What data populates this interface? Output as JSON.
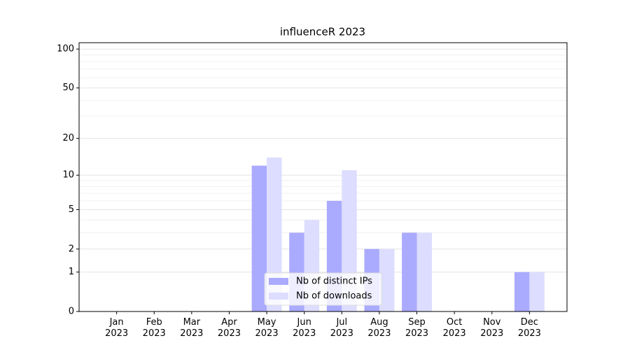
{
  "chart_data": {
    "type": "bar",
    "title": "influenceR 2023",
    "categories": [
      "Jan\n2023",
      "Feb\n2023",
      "Mar\n2023",
      "Apr\n2023",
      "May\n2023",
      "Jun\n2023",
      "Jul\n2023",
      "Aug\n2023",
      "Sep\n2023",
      "Oct\n2023",
      "Nov\n2023",
      "Dec\n2023"
    ],
    "series": [
      {
        "name": "Nb of distinct IPs",
        "color": "#aaaaff",
        "values": [
          0,
          0,
          0,
          0,
          12,
          3,
          6,
          2,
          3,
          0,
          0,
          1
        ]
      },
      {
        "name": "Nb of downloads",
        "color": "#ddddff",
        "values": [
          0,
          0,
          0,
          0,
          14,
          4,
          11,
          2,
          3,
          0,
          0,
          1
        ]
      }
    ],
    "yscale": "log1p",
    "ylim": [
      0,
      112
    ],
    "yticks": [
      0,
      1,
      2,
      5,
      10,
      20,
      50,
      100
    ],
    "yminorticks": [
      3,
      4,
      6,
      7,
      8,
      9,
      30,
      40,
      60,
      70,
      80,
      90
    ],
    "grid": true,
    "legend": "lower center"
  }
}
